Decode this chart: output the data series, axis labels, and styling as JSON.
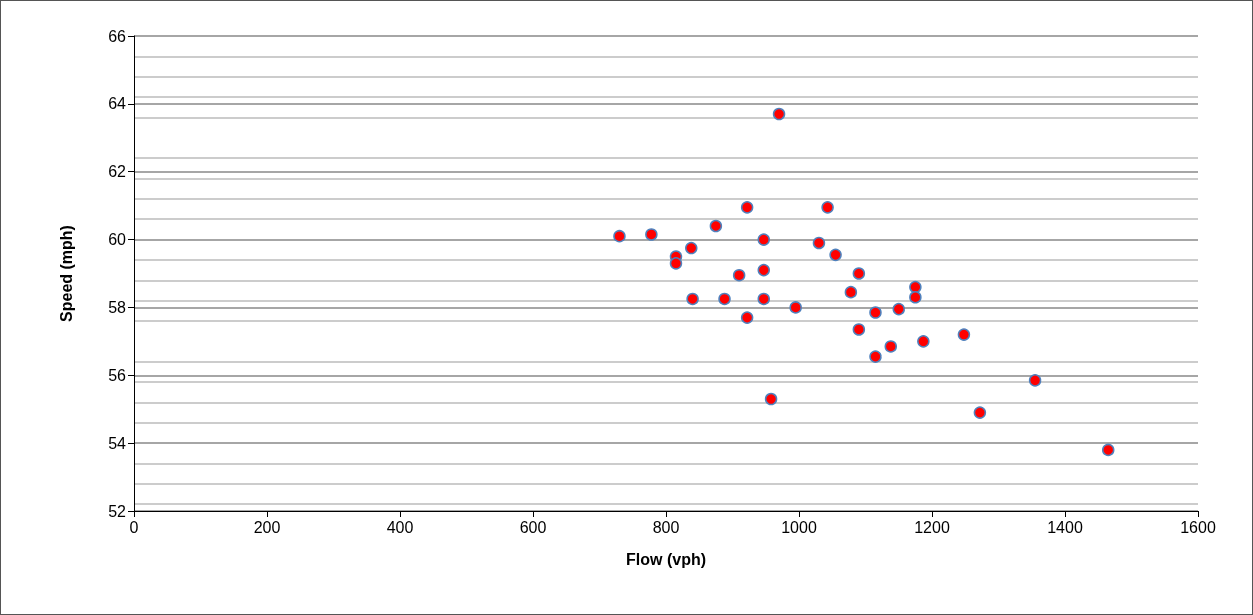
{
  "chart_data": {
    "type": "scatter",
    "xlabel": "Flow (vph)",
    "ylabel": "Speed (mph)",
    "x": [
      730,
      778,
      815,
      815,
      838,
      840,
      875,
      888,
      910,
      922,
      922,
      947,
      947,
      947,
      958,
      970,
      995,
      1030,
      1043,
      1055,
      1078,
      1090,
      1090,
      1115,
      1115,
      1138,
      1150,
      1175,
      1175,
      1187,
      1248,
      1272,
      1355,
      1465
    ],
    "values": [
      60.1,
      60.15,
      59.5,
      59.3,
      59.75,
      58.25,
      60.4,
      58.25,
      58.95,
      60.95,
      57.7,
      60.0,
      59.1,
      58.25,
      55.3,
      63.7,
      58.0,
      59.9,
      60.95,
      59.55,
      58.45,
      59.0,
      57.35,
      57.85,
      56.55,
      56.85,
      57.95,
      58.6,
      58.3,
      57.0,
      57.2,
      54.9,
      55.85,
      53.8
    ],
    "color": "#ff0000",
    "marker": "circle",
    "xlim": [
      0,
      1600
    ],
    "xticks": [
      0,
      200,
      400,
      600,
      800,
      1000,
      1200,
      1400,
      1600
    ],
    "ylim": [
      52,
      66
    ],
    "yticks": [
      52,
      54,
      56,
      58,
      60,
      62,
      64,
      66
    ],
    "grid": "y"
  }
}
